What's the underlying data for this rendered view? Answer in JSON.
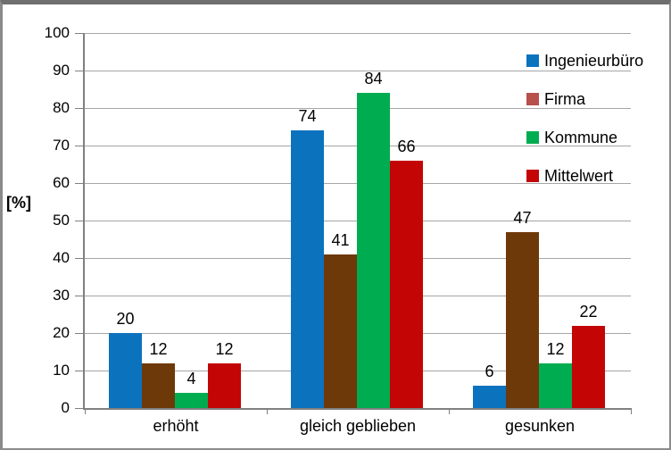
{
  "chart_data": {
    "type": "bar",
    "title": "",
    "xlabel": "",
    "ylabel": "[%]",
    "categories": [
      "erhöht",
      "gleich geblieben",
      "gesunken"
    ],
    "series": [
      {
        "name": "Ingenieurbüro",
        "color": "#0B72BE",
        "legend_color": "#0B72BE",
        "values": [
          20,
          74,
          6
        ]
      },
      {
        "name": "Firma",
        "color": "#6E3908",
        "legend_color": "#B8504C",
        "values": [
          12,
          41,
          47
        ]
      },
      {
        "name": "Kommune",
        "color": "#00AC50",
        "legend_color": "#00AC50",
        "values": [
          4,
          84,
          12
        ]
      },
      {
        "name": "Mittelwert",
        "color": "#C30505",
        "legend_color": "#C30505",
        "values": [
          12,
          66,
          22
        ]
      }
    ],
    "y_ticks": [
      0,
      10,
      20,
      30,
      40,
      50,
      60,
      70,
      80,
      90,
      100
    ],
    "ylim": [
      0,
      100
    ],
    "grid": true,
    "data_labels": true,
    "legend_position": "right-overlay",
    "colors": {
      "gridline": "#A6A6A6",
      "axis": "#808080",
      "text": "#000000",
      "background": "#FFFFFF",
      "frame_border": "#8C8C8C"
    }
  }
}
